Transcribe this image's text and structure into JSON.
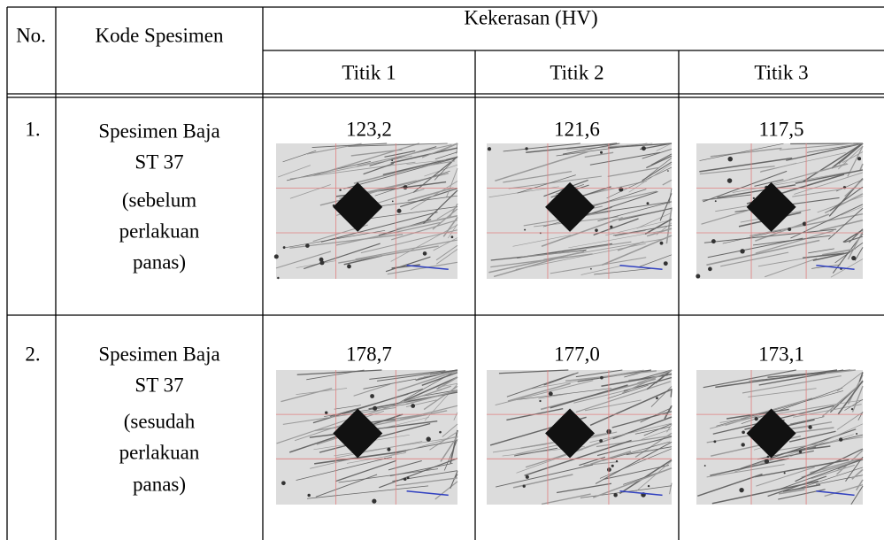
{
  "table": {
    "header": {
      "no": "No.",
      "kode": "Kode Spesimen",
      "group": "Kekerasan (HV)",
      "points": [
        "Titik 1",
        "Titik 2",
        "Titik 3"
      ]
    },
    "rows": [
      {
        "no": "1.",
        "kode": [
          "Spesimen Baja",
          "ST 37",
          "(sebelum",
          "perlakuan",
          "panas)"
        ],
        "values": [
          "123,2",
          "121,6",
          "117,5"
        ]
      },
      {
        "no": "2.",
        "kode": [
          "Spesimen Baja",
          "ST 37",
          "(sesudah",
          "perlakuan",
          "panas)"
        ],
        "values": [
          "178,7",
          "177,0",
          "173,1"
        ]
      }
    ]
  }
}
